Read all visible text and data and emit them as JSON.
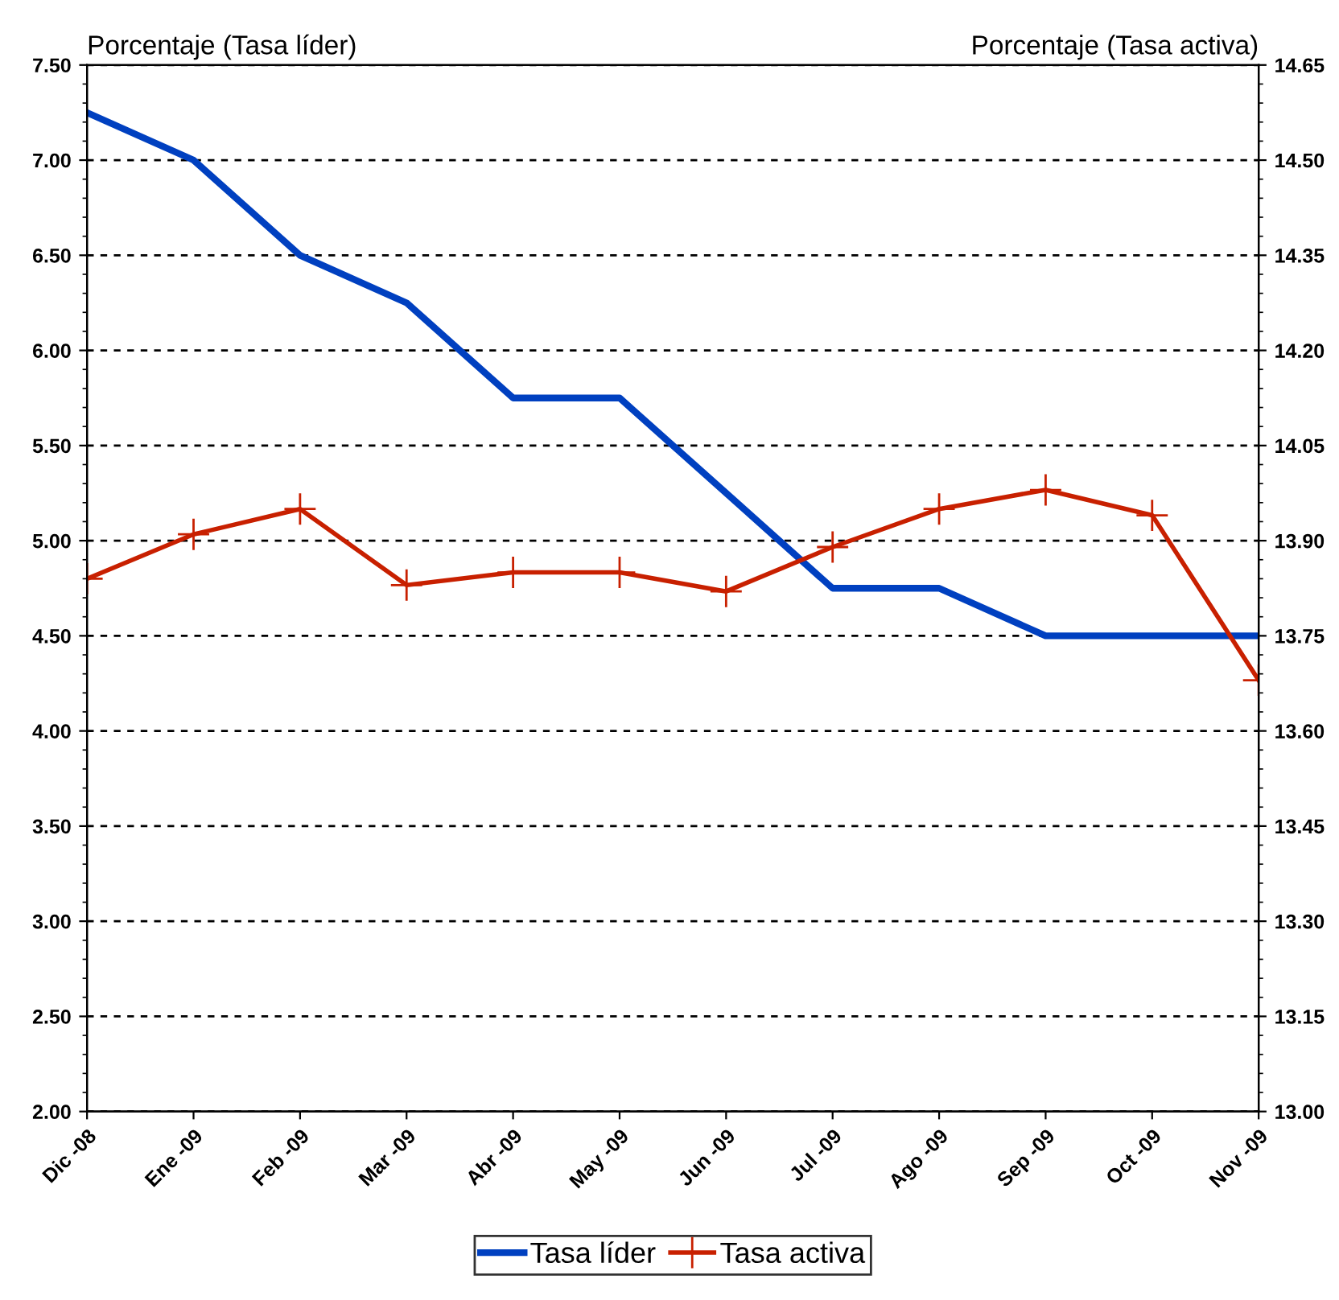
{
  "chart_data": {
    "type": "line",
    "ylabel": "Porcentaje (Tasa líder)",
    "y2label": "Porcentaje (Tasa activa)",
    "categories": [
      "Dic -08",
      "Ene -09",
      "Feb -09",
      "Mar -09",
      "Abr -09",
      "May -09",
      "Jun -09",
      "Jul -09",
      "Ago -09",
      "Sep -09",
      "Oct -09",
      "Nov -09"
    ],
    "series": [
      {
        "name": "Tasa líder",
        "color": "#0040c0",
        "values": [
          7.25,
          7.0,
          6.5,
          6.25,
          5.75,
          5.75,
          5.25,
          4.75,
          4.75,
          4.5,
          4.5,
          4.5
        ],
        "marker": "none"
      },
      {
        "name": "Tasa activa",
        "color": "#c82000",
        "axis": "y2",
        "marker": "cross",
        "values": [
          13.84,
          13.91,
          13.95,
          13.83,
          13.85,
          13.85,
          13.82,
          13.89,
          13.95,
          13.98,
          13.94,
          13.68
        ]
      }
    ],
    "ylim": [
      2.0,
      7.5
    ],
    "yticks": [
      {
        "value": 2,
        "label": "2.00"
      },
      {
        "value": 2.5,
        "label": "2.50"
      },
      {
        "value": 3,
        "label": "3.00"
      },
      {
        "value": 3.5,
        "label": "3.50"
      },
      {
        "value": 4,
        "label": "4.00"
      },
      {
        "value": 4.5,
        "label": "4.50"
      },
      {
        "value": 5,
        "label": "5.00"
      },
      {
        "value": 5.5,
        "label": "5.50"
      },
      {
        "value": 6,
        "label": "6.00"
      },
      {
        "value": 6.5,
        "label": "6.50"
      },
      {
        "value": 7,
        "label": "7.00"
      },
      {
        "value": 7.5,
        "label": "7.50"
      }
    ],
    "y2lim": [
      13.0,
      14.65
    ],
    "y2ticks": [
      {
        "value": 13.0,
        "label": "13.00"
      },
      {
        "value": 13.15,
        "label": "13.15"
      },
      {
        "value": 13.3,
        "label": "13.30"
      },
      {
        "value": 13.45,
        "label": "13.45"
      },
      {
        "value": 13.6,
        "label": "13.60"
      },
      {
        "value": 13.75,
        "label": "13.75"
      },
      {
        "value": 13.9,
        "label": "13.90"
      },
      {
        "value": 14.05,
        "label": "14.05"
      },
      {
        "value": 14.2,
        "label": "14.20"
      },
      {
        "value": 14.35,
        "label": "14.35"
      },
      {
        "value": 14.5,
        "label": "14.50"
      },
      {
        "value": 14.65,
        "label": "14.65"
      }
    ],
    "grid": "y",
    "legend": "bottom",
    "line_style": "solid"
  }
}
